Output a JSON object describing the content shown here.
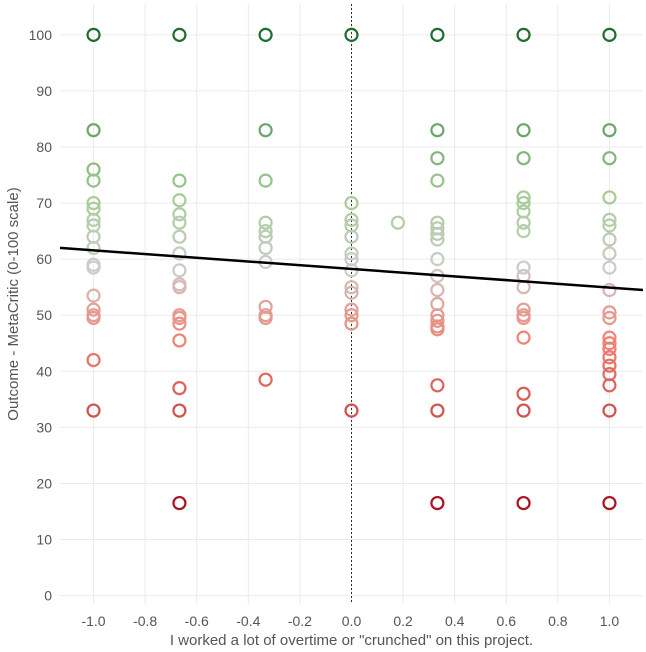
{
  "chart_data": {
    "type": "scatter",
    "title": "",
    "xlabel": "I worked a lot of overtime or \"crunched\" on this project.",
    "ylabel": "Outcome - MetaCritic (0-100 scale)",
    "xlim": [
      -1.13,
      1.13
    ],
    "ylim": [
      -1.5,
      105.5
    ],
    "x_ticks": [
      "-1.0",
      "-0.8",
      "-0.6",
      "-0.4",
      "-0.2",
      "0.0",
      "0.2",
      "0.4",
      "0.6",
      "0.8",
      "1.0"
    ],
    "y_ticks": [
      "0",
      "10",
      "20",
      "30",
      "40",
      "50",
      "60",
      "70",
      "80",
      "90",
      "100"
    ],
    "grid": true,
    "reference_line_x": 0,
    "trend_line": {
      "x": [
        -1.13,
        1.13
      ],
      "y": [
        62.0,
        54.5
      ]
    },
    "color_scale": {
      "low": "#a50f1e",
      "mid": "#cccccc",
      "high": "#1e6e32",
      "mid_value": 58.5
    },
    "points": [
      {
        "x": -1.0,
        "y": 100
      },
      {
        "x": -1.0,
        "y": 83
      },
      {
        "x": -1.0,
        "y": 76
      },
      {
        "x": -1.0,
        "y": 74
      },
      {
        "x": -1.0,
        "y": 70
      },
      {
        "x": -1.0,
        "y": 69
      },
      {
        "x": -1.0,
        "y": 67
      },
      {
        "x": -1.0,
        "y": 66
      },
      {
        "x": -1.0,
        "y": 64
      },
      {
        "x": -1.0,
        "y": 62
      },
      {
        "x": -1.0,
        "y": 59
      },
      {
        "x": -1.0,
        "y": 58.5
      },
      {
        "x": -1.0,
        "y": 53.5
      },
      {
        "x": -1.0,
        "y": 51
      },
      {
        "x": -1.0,
        "y": 50
      },
      {
        "x": -1.0,
        "y": 49.5
      },
      {
        "x": -1.0,
        "y": 42
      },
      {
        "x": -1.0,
        "y": 33
      },
      {
        "x": -0.667,
        "y": 100
      },
      {
        "x": -0.667,
        "y": 74
      },
      {
        "x": -0.667,
        "y": 70.5
      },
      {
        "x": -0.667,
        "y": 68
      },
      {
        "x": -0.667,
        "y": 66.5
      },
      {
        "x": -0.667,
        "y": 64
      },
      {
        "x": -0.667,
        "y": 61
      },
      {
        "x": -0.667,
        "y": 58
      },
      {
        "x": -0.667,
        "y": 55.5
      },
      {
        "x": -0.667,
        "y": 55
      },
      {
        "x": -0.667,
        "y": 50
      },
      {
        "x": -0.667,
        "y": 49.5
      },
      {
        "x": -0.667,
        "y": 48.5
      },
      {
        "x": -0.667,
        "y": 45.5
      },
      {
        "x": -0.667,
        "y": 37
      },
      {
        "x": -0.667,
        "y": 33
      },
      {
        "x": -0.667,
        "y": 16.5
      },
      {
        "x": -0.333,
        "y": 100
      },
      {
        "x": -0.333,
        "y": 83
      },
      {
        "x": -0.333,
        "y": 74
      },
      {
        "x": -0.333,
        "y": 66.5
      },
      {
        "x": -0.333,
        "y": 65
      },
      {
        "x": -0.333,
        "y": 64
      },
      {
        "x": -0.333,
        "y": 62
      },
      {
        "x": -0.333,
        "y": 59.5
      },
      {
        "x": -0.333,
        "y": 51.5
      },
      {
        "x": -0.333,
        "y": 50
      },
      {
        "x": -0.333,
        "y": 49.5
      },
      {
        "x": -0.333,
        "y": 38.5
      },
      {
        "x": 0.0,
        "y": 100
      },
      {
        "x": 0.0,
        "y": 70
      },
      {
        "x": 0.0,
        "y": 67
      },
      {
        "x": 0.0,
        "y": 66
      },
      {
        "x": 0.0,
        "y": 64
      },
      {
        "x": 0.0,
        "y": 61
      },
      {
        "x": 0.0,
        "y": 60
      },
      {
        "x": 0.0,
        "y": 58
      },
      {
        "x": 0.0,
        "y": 55
      },
      {
        "x": 0.0,
        "y": 54
      },
      {
        "x": 0.0,
        "y": 51
      },
      {
        "x": 0.0,
        "y": 50
      },
      {
        "x": 0.0,
        "y": 48.5
      },
      {
        "x": 0.0,
        "y": 33
      },
      {
        "x": 0.18,
        "y": 66.5
      },
      {
        "x": 0.333,
        "y": 100
      },
      {
        "x": 0.333,
        "y": 83
      },
      {
        "x": 0.333,
        "y": 78
      },
      {
        "x": 0.333,
        "y": 74
      },
      {
        "x": 0.333,
        "y": 66.5
      },
      {
        "x": 0.333,
        "y": 65.5
      },
      {
        "x": 0.333,
        "y": 64.5
      },
      {
        "x": 0.333,
        "y": 63.5
      },
      {
        "x": 0.333,
        "y": 60
      },
      {
        "x": 0.333,
        "y": 57
      },
      {
        "x": 0.333,
        "y": 54.5
      },
      {
        "x": 0.333,
        "y": 52
      },
      {
        "x": 0.333,
        "y": 50
      },
      {
        "x": 0.333,
        "y": 49
      },
      {
        "x": 0.333,
        "y": 48
      },
      {
        "x": 0.333,
        "y": 47.5
      },
      {
        "x": 0.333,
        "y": 37.5
      },
      {
        "x": 0.333,
        "y": 33
      },
      {
        "x": 0.333,
        "y": 16.5
      },
      {
        "x": 0.667,
        "y": 100
      },
      {
        "x": 0.667,
        "y": 83
      },
      {
        "x": 0.667,
        "y": 78
      },
      {
        "x": 0.667,
        "y": 71
      },
      {
        "x": 0.667,
        "y": 70
      },
      {
        "x": 0.667,
        "y": 68.5
      },
      {
        "x": 0.667,
        "y": 66.5
      },
      {
        "x": 0.667,
        "y": 65
      },
      {
        "x": 0.667,
        "y": 58.5
      },
      {
        "x": 0.667,
        "y": 57
      },
      {
        "x": 0.667,
        "y": 55
      },
      {
        "x": 0.667,
        "y": 51
      },
      {
        "x": 0.667,
        "y": 50
      },
      {
        "x": 0.667,
        "y": 49.5
      },
      {
        "x": 0.667,
        "y": 46
      },
      {
        "x": 0.667,
        "y": 36
      },
      {
        "x": 0.667,
        "y": 33
      },
      {
        "x": 0.667,
        "y": 16.5
      },
      {
        "x": 1.0,
        "y": 100
      },
      {
        "x": 1.0,
        "y": 83
      },
      {
        "x": 1.0,
        "y": 78
      },
      {
        "x": 1.0,
        "y": 71
      },
      {
        "x": 1.0,
        "y": 67
      },
      {
        "x": 1.0,
        "y": 66
      },
      {
        "x": 1.0,
        "y": 63.5
      },
      {
        "x": 1.0,
        "y": 61
      },
      {
        "x": 1.0,
        "y": 58.5
      },
      {
        "x": 1.0,
        "y": 54.5
      },
      {
        "x": 1.0,
        "y": 50.5
      },
      {
        "x": 1.0,
        "y": 49.5
      },
      {
        "x": 1.0,
        "y": 46
      },
      {
        "x": 1.0,
        "y": 45
      },
      {
        "x": 1.0,
        "y": 44
      },
      {
        "x": 1.0,
        "y": 42.5
      },
      {
        "x": 1.0,
        "y": 41
      },
      {
        "x": 1.0,
        "y": 39.5
      },
      {
        "x": 1.0,
        "y": 37.5
      },
      {
        "x": 1.0,
        "y": 33
      },
      {
        "x": 1.0,
        "y": 16.5
      }
    ]
  }
}
